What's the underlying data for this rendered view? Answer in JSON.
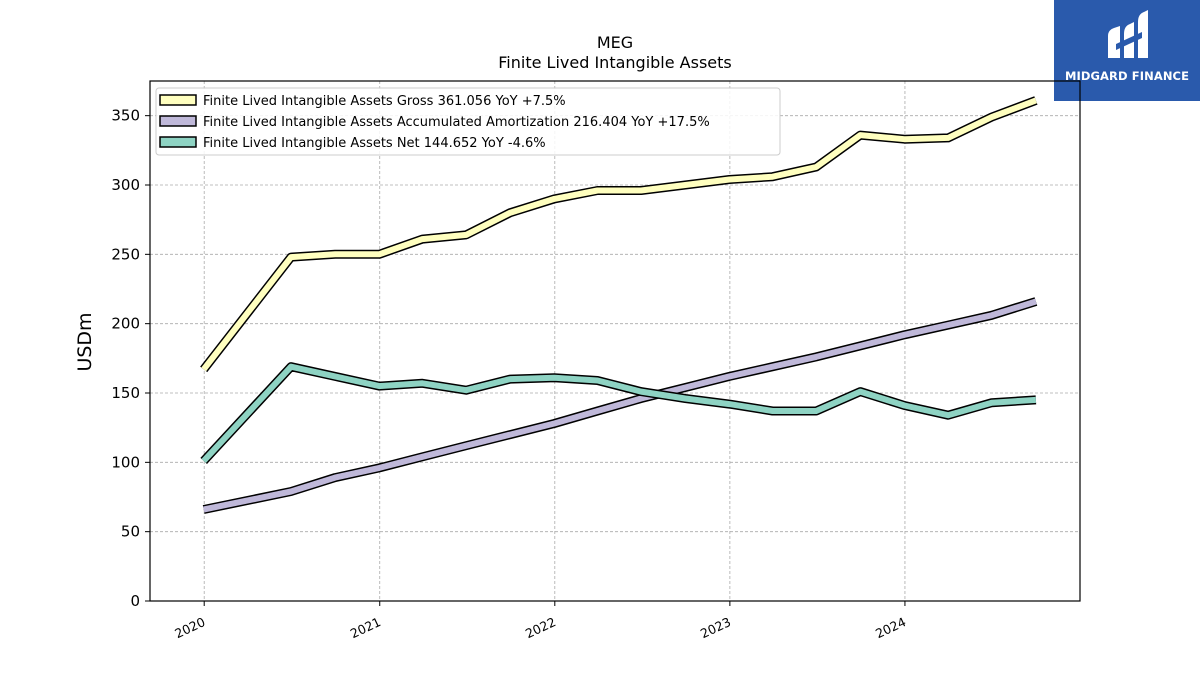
{
  "brand": {
    "name": "MIDGARD FINANCE",
    "color": "#2a5aac"
  },
  "chart_data": {
    "type": "line",
    "title": "MEG",
    "subtitle": "Finite Lived Intangible Assets",
    "ylabel": "USDm",
    "xlabel": "",
    "ylim": [
      0,
      375
    ],
    "xlim": [
      "2019-09-10",
      "2024-12-31"
    ],
    "yticks": [
      0,
      50,
      100,
      150,
      200,
      250,
      300,
      350
    ],
    "xticks": [
      "2020",
      "2021",
      "2022",
      "2023",
      "2024"
    ],
    "grid": true,
    "legend_position": "top-left",
    "x": [
      "2019-12-31",
      "2020-06-30",
      "2020-09-30",
      "2020-12-31",
      "2021-03-31",
      "2021-06-30",
      "2021-09-30",
      "2021-12-31",
      "2022-03-31",
      "2022-06-30",
      "2022-09-30",
      "2022-12-31",
      "2023-03-31",
      "2023-06-30",
      "2023-09-30",
      "2023-12-31",
      "2024-03-31",
      "2024-06-30",
      "2024-09-30"
    ],
    "series": [
      {
        "name": "Finite Lived Intangible Assets Gross",
        "legend_label": "Finite Lived Intangible Assets Gross  361.056 YoY +7.5%",
        "color": "#ffffbf",
        "values": [
          167,
          248,
          250,
          250,
          261,
          264,
          280,
          290,
          296,
          296,
          300,
          304,
          306,
          313,
          336,
          333,
          334,
          349,
          361
        ]
      },
      {
        "name": "Finite Lived Intangible Assets Accumulated Amortization",
        "legend_label": "Finite Lived Intangible Assets Accumulated Amortization  216.404 YoY +17.5%",
        "color": "#bfb8d9",
        "values": [
          66,
          79,
          89,
          96,
          104,
          112,
          120,
          128,
          137,
          146,
          154,
          162,
          169,
          176,
          184,
          192,
          199,
          206,
          216
        ]
      },
      {
        "name": "Finite Lived Intangible Assets Net",
        "legend_label": "Finite Lived Intangible Assets Net  144.652 YoY -4.6%",
        "color": "#8ed3c3",
        "values": [
          101,
          169,
          162,
          155,
          157,
          152,
          160,
          161,
          159,
          151,
          146,
          142,
          137,
          137,
          151,
          141,
          134,
          143,
          145
        ]
      }
    ]
  }
}
